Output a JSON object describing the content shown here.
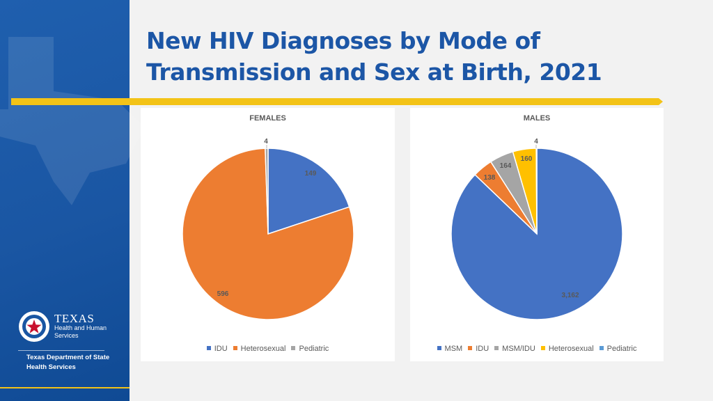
{
  "slide": {
    "title": "New HIV Diagnoses by Mode of Transmission and Sex at Birth, 2021",
    "colors": {
      "sidebar": "#1a56a3",
      "title": "#1c56a6",
      "accent_rule": "#f3c317"
    }
  },
  "logo": {
    "line1": "TEXAS",
    "line2": "Health and Human",
    "line3": "Services",
    "dept": "Texas Department of State Health Services"
  },
  "chart_data": [
    {
      "type": "pie",
      "title": "FEMALES",
      "categories": [
        "IDU",
        "Heterosexual",
        "Pediatric"
      ],
      "values": [
        149,
        596,
        4
      ],
      "data_labels": [
        "149",
        "596",
        "4"
      ],
      "colors": [
        "#4472c4",
        "#ed7d31",
        "#a5a5a5"
      ],
      "legend": "bottom"
    },
    {
      "type": "pie",
      "title": "MALES",
      "categories": [
        "MSM",
        "IDU",
        "MSM/IDU",
        "Heterosexual",
        "Pediatric"
      ],
      "values": [
        3162,
        138,
        164,
        160,
        4
      ],
      "data_labels": [
        "3,162",
        "138",
        "164",
        "160",
        "4"
      ],
      "colors": [
        "#4472c4",
        "#ed7d31",
        "#a5a5a5",
        "#ffc000",
        "#5b9bd5"
      ],
      "legend": "bottom"
    }
  ]
}
